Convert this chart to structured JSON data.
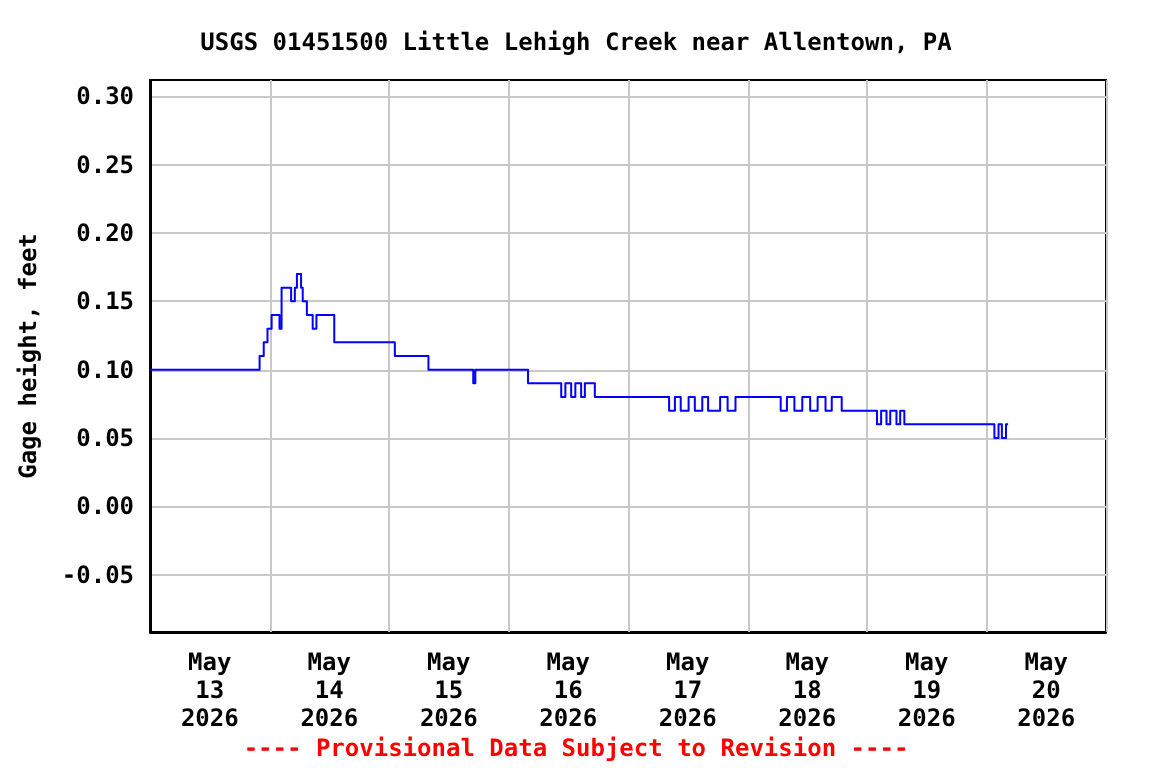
{
  "chart_data": {
    "type": "step",
    "title": "USGS 01451500 Little Lehigh Creek near Allentown, PA",
    "ylabel": "Gage height, feet",
    "annotations": [
      "---- Provisional Data Subject to Revision ----"
    ],
    "x": [
      "2026-05-13T00:00",
      "2026-05-13T22:00",
      "2026-05-13T22:50",
      "2026-05-13T23:35",
      "2026-05-14T00:25",
      "2026-05-14T02:00",
      "2026-05-14T02:25",
      "2026-05-14T04:20",
      "2026-05-14T05:05",
      "2026-05-14T05:30",
      "2026-05-14T06:20",
      "2026-05-14T06:40",
      "2026-05-14T07:30",
      "2026-05-14T08:40",
      "2026-05-14T09:25",
      "2026-05-14T13:00",
      "2026-05-15T01:10",
      "2026-05-15T07:55",
      "2026-05-15T16:55",
      "2026-05-15T17:20",
      "2026-05-16T03:55",
      "2026-05-16T10:35",
      "2026-05-16T11:25",
      "2026-05-16T12:35",
      "2026-05-16T13:25",
      "2026-05-16T14:35",
      "2026-05-16T15:20",
      "2026-05-16T17:20",
      "2026-05-17T08:15",
      "2026-05-17T09:25",
      "2026-05-17T10:35",
      "2026-05-17T12:10",
      "2026-05-17T13:25",
      "2026-05-17T14:55",
      "2026-05-17T16:05",
      "2026-05-17T18:30",
      "2026-05-17T20:00",
      "2026-05-17T21:35",
      "2026-05-18T06:40",
      "2026-05-18T07:55",
      "2026-05-18T09:25",
      "2026-05-18T11:00",
      "2026-05-18T12:35",
      "2026-05-18T14:05",
      "2026-05-18T15:40",
      "2026-05-18T16:55",
      "2026-05-18T18:55",
      "2026-05-19T02:00",
      "2026-05-19T02:50",
      "2026-05-19T03:55",
      "2026-05-19T04:40",
      "2026-05-19T05:55",
      "2026-05-19T06:40",
      "2026-05-19T07:30",
      "2026-05-20T01:35",
      "2026-05-20T02:25",
      "2026-05-20T03:05",
      "2026-05-20T03:55",
      "2026-05-20T04:20"
    ],
    "series": [
      {
        "color": "#0000ff",
        "values": [
          0.1,
          0.11,
          0.12,
          0.13,
          0.14,
          0.13,
          0.16,
          0.15,
          0.16,
          0.17,
          0.16,
          0.15,
          0.14,
          0.13,
          0.14,
          0.12,
          0.11,
          0.1,
          0.09,
          0.1,
          0.09,
          0.08,
          0.09,
          0.08,
          0.09,
          0.08,
          0.09,
          0.08,
          0.07,
          0.08,
          0.07,
          0.08,
          0.07,
          0.08,
          0.07,
          0.08,
          0.07,
          0.08,
          0.07,
          0.08,
          0.07,
          0.08,
          0.07,
          0.08,
          0.07,
          0.08,
          0.07,
          0.06,
          0.07,
          0.06,
          0.07,
          0.06,
          0.07,
          0.06,
          0.05,
          0.06,
          0.05,
          0.06,
          0.06
        ]
      }
    ],
    "xlim": [
      "2026-05-13T00:00",
      "2026-05-21T00:00"
    ],
    "xticks": [
      {
        "value": "2026-05-13T00:00",
        "label": null
      },
      {
        "value": "2026-05-14T00:00",
        "label": null
      },
      {
        "value": "2026-05-15T00:00",
        "label": null
      },
      {
        "value": "2026-05-16T00:00",
        "label": null
      },
      {
        "value": "2026-05-17T00:00",
        "label": null
      },
      {
        "value": "2026-05-18T00:00",
        "label": null
      },
      {
        "value": "2026-05-19T00:00",
        "label": null
      },
      {
        "value": "2026-05-20T00:00",
        "label": null
      },
      {
        "value": "2026-05-21T00:00",
        "label": null
      },
      {
        "value": "2026-05-13T12:00",
        "label": "May\n13\n2026"
      },
      {
        "value": "2026-05-14T12:00",
        "label": "May\n14\n2026"
      },
      {
        "value": "2026-05-15T12:00",
        "label": "May\n15\n2026"
      },
      {
        "value": "2026-05-16T12:00",
        "label": "May\n16\n2026"
      },
      {
        "value": "2026-05-17T12:00",
        "label": "May\n17\n2026"
      },
      {
        "value": "2026-05-18T12:00",
        "label": "May\n18\n2026"
      },
      {
        "value": "2026-05-19T12:00",
        "label": "May\n19\n2026"
      },
      {
        "value": "2026-05-20T12:00",
        "label": "May\n20\n2026"
      }
    ],
    "ylim": [
      -0.092,
      0.312
    ],
    "yticks": [
      {
        "value": -0.05,
        "label": "-0.05"
      },
      {
        "value": 0,
        "label": "0.00"
      },
      {
        "value": 0.05,
        "label": "0.05"
      },
      {
        "value": 0.1,
        "label": "0.10"
      },
      {
        "value": 0.15,
        "label": "0.15"
      },
      {
        "value": 0.2,
        "label": "0.20"
      },
      {
        "value": 0.25,
        "label": "0.25"
      },
      {
        "value": 0.3,
        "label": "0.30"
      }
    ],
    "grid": true,
    "marker": "none",
    "line_style": "solid"
  }
}
